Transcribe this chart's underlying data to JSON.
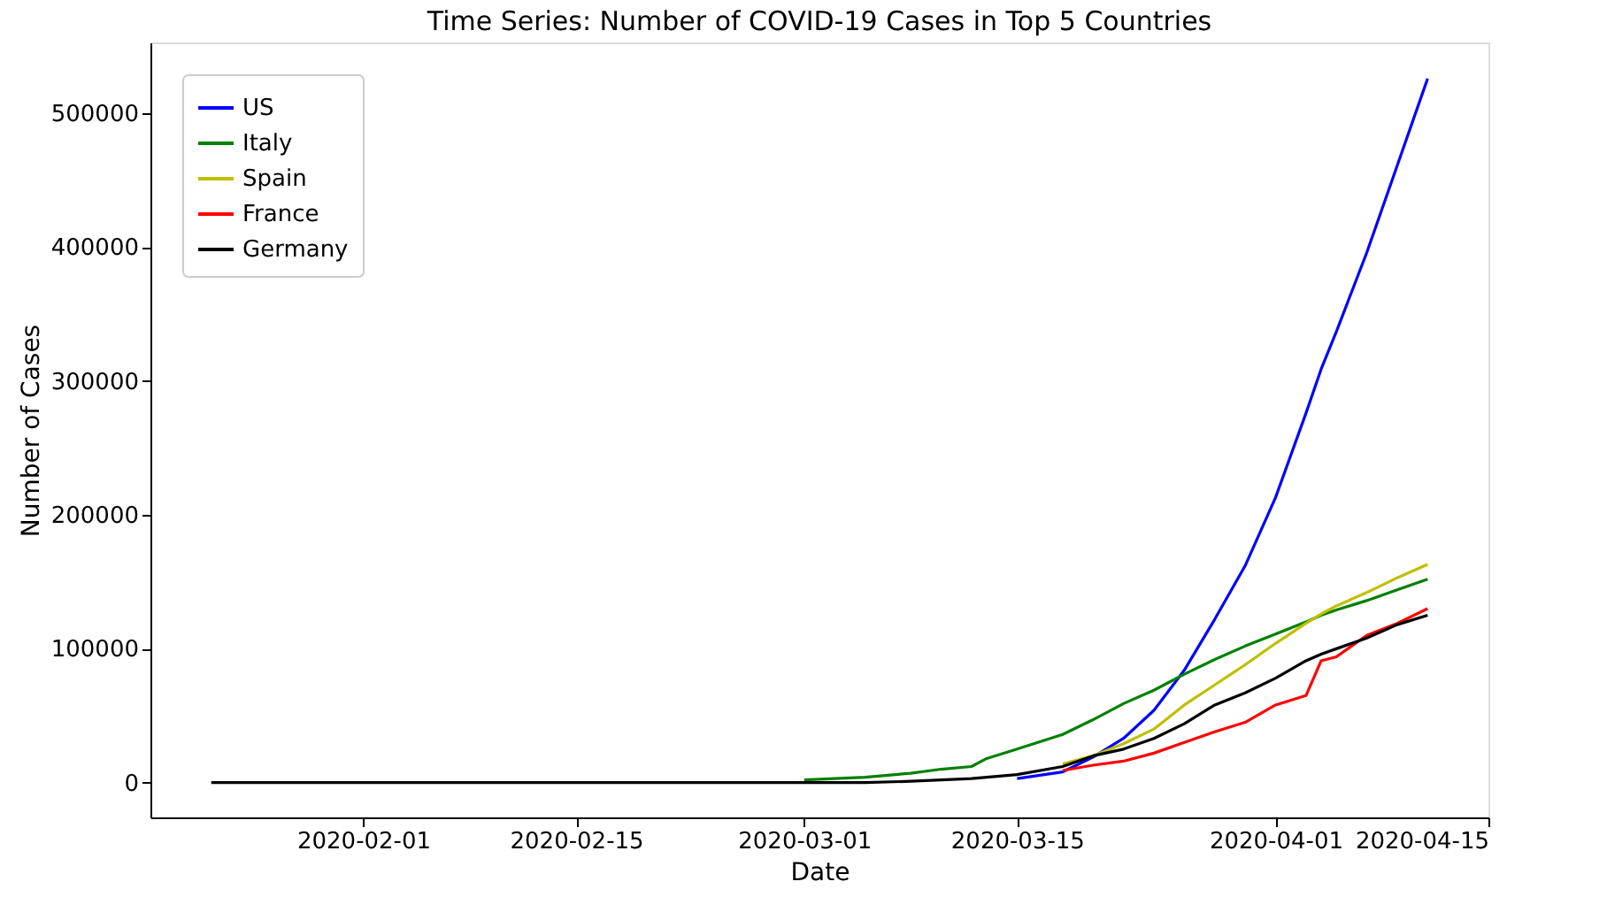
{
  "chart_data": {
    "type": "line",
    "title": "Time Series: Number of COVID-19 Cases in Top 5 Countries",
    "xlabel": "Date",
    "ylabel": "Number of Cases",
    "x": [
      "2020-01-22",
      "2020-02-01",
      "2020-02-15",
      "2020-02-22",
      "2020-03-01",
      "2020-03-05",
      "2020-03-08",
      "2020-03-10",
      "2020-03-12",
      "2020-03-13",
      "2020-03-15",
      "2020-03-18",
      "2020-03-20",
      "2020-03-22",
      "2020-03-24",
      "2020-03-26",
      "2020-03-28",
      "2020-03-30",
      "2020-04-01",
      "2020-04-03",
      "2020-04-04",
      "2020-04-05",
      "2020-04-07",
      "2020-04-09",
      "2020-04-11"
    ],
    "series": [
      {
        "name": "US",
        "color": "#0000ff",
        "values": [
          null,
          null,
          null,
          null,
          null,
          null,
          null,
          null,
          null,
          null,
          3000,
          8000,
          19000,
          33000,
          54000,
          84000,
          122000,
          162000,
          213000,
          276000,
          309000,
          337000,
          396000,
          461000,
          526000
        ]
      },
      {
        "name": "Italy",
        "color": "#008000",
        "values": [
          null,
          null,
          null,
          null,
          2000,
          4000,
          7000,
          10000,
          12000,
          18000,
          25000,
          36000,
          47000,
          59000,
          69000,
          81000,
          92000,
          102000,
          111000,
          120000,
          125000,
          129000,
          136000,
          144000,
          152000
        ]
      },
      {
        "name": "Spain",
        "color": "#bfbf00",
        "values": [
          null,
          null,
          null,
          null,
          null,
          null,
          null,
          null,
          null,
          null,
          null,
          14000,
          20000,
          29000,
          40000,
          58000,
          73000,
          88000,
          104000,
          119000,
          126000,
          132000,
          142000,
          153000,
          163000
        ]
      },
      {
        "name": "France",
        "color": "#ff0000",
        "values": [
          null,
          null,
          null,
          null,
          null,
          null,
          null,
          null,
          null,
          null,
          null,
          9000,
          13000,
          16000,
          22000,
          30000,
          38000,
          45000,
          58000,
          65000,
          91000,
          94000,
          110000,
          119000,
          130000
        ]
      },
      {
        "name": "Germany",
        "color": "#000000",
        "values": [
          0,
          0,
          0,
          0,
          0,
          0,
          1000,
          2000,
          3000,
          4000,
          6000,
          12000,
          20000,
          25000,
          33000,
          44000,
          58000,
          67000,
          78000,
          91000,
          96000,
          100000,
          108000,
          118000,
          125000
        ]
      }
    ],
    "xlim": [
      "2020-01-18",
      "2020-04-15"
    ],
    "xticks": [
      "2020-02-01",
      "2020-02-15",
      "2020-03-01",
      "2020-03-15",
      "2020-04-01",
      "2020-04-15"
    ],
    "ylim": [
      -26000,
      553000
    ],
    "yticks": [
      0,
      100000,
      200000,
      300000,
      400000,
      500000
    ],
    "grid": false,
    "legend": "top left",
    "line_style": "solid",
    "marker": "none"
  }
}
